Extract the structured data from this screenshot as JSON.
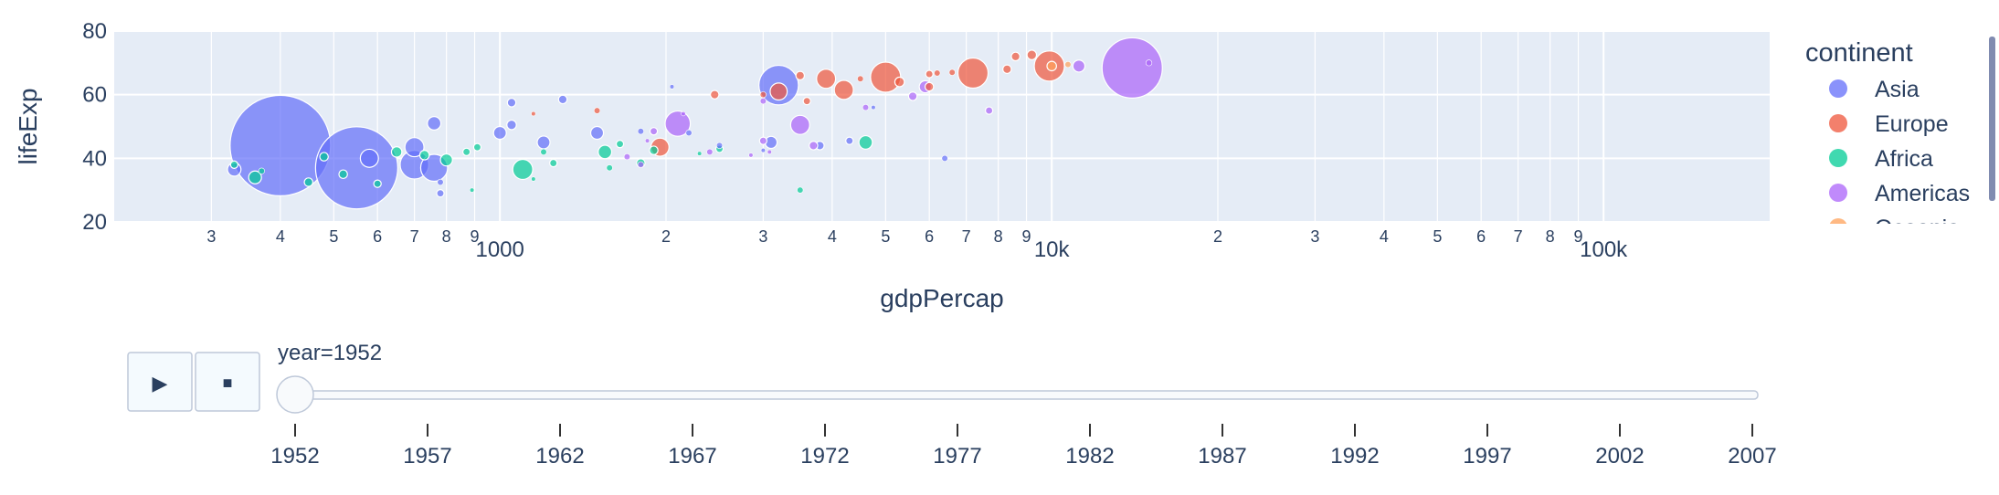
{
  "chart_data": {
    "type": "scatter",
    "subtype": "bubble",
    "xlabel": "gdpPercap",
    "ylabel": "lifeExp",
    "x_scale": "log",
    "xlim": [
      200,
      200000
    ],
    "ylim": [
      20,
      80
    ],
    "y_ticks": [
      "20",
      "40",
      "60",
      "80"
    ],
    "x_ticks": [
      {
        "value": 300,
        "label": "3"
      },
      {
        "value": 400,
        "label": "4"
      },
      {
        "value": 500,
        "label": "5"
      },
      {
        "value": 600,
        "label": "6"
      },
      {
        "value": 700,
        "label": "7"
      },
      {
        "value": 800,
        "label": "8"
      },
      {
        "value": 900,
        "label": "9"
      },
      {
        "value": 1000,
        "label": "1000",
        "major": true
      },
      {
        "value": 2000,
        "label": "2"
      },
      {
        "value": 3000,
        "label": "3"
      },
      {
        "value": 4000,
        "label": "4"
      },
      {
        "value": 5000,
        "label": "5"
      },
      {
        "value": 6000,
        "label": "6"
      },
      {
        "value": 7000,
        "label": "7"
      },
      {
        "value": 8000,
        "label": "8"
      },
      {
        "value": 9000,
        "label": "9"
      },
      {
        "value": 10000,
        "label": "10k",
        "major": true
      },
      {
        "value": 20000,
        "label": "2"
      },
      {
        "value": 30000,
        "label": "3"
      },
      {
        "value": 40000,
        "label": "4"
      },
      {
        "value": 50000,
        "label": "5"
      },
      {
        "value": 60000,
        "label": "6"
      },
      {
        "value": 70000,
        "label": "7"
      },
      {
        "value": 80000,
        "label": "8"
      },
      {
        "value": 90000,
        "label": "9"
      },
      {
        "value": 100000,
        "label": "100k",
        "major": true
      }
    ],
    "legend": {
      "title": "continent",
      "placement": "right",
      "entries": [
        {
          "name": "Asia",
          "color": "#636efa"
        },
        {
          "name": "Europe",
          "color": "#ef553b"
        },
        {
          "name": "Africa",
          "color": "#00cc96"
        },
        {
          "name": "Americas",
          "color": "#ab63fa"
        },
        {
          "name": "Oceania",
          "color": "#ffa15a"
        }
      ]
    },
    "series": [
      {
        "name": "Asia",
        "color": "#636efa",
        "points": [
          {
            "x": 400,
            "y": 44,
            "size": 556
          },
          {
            "x": 550,
            "y": 37,
            "size": 372
          },
          {
            "x": 3200,
            "y": 63,
            "size": 86
          },
          {
            "x": 700,
            "y": 38,
            "size": 45
          },
          {
            "x": 760,
            "y": 37,
            "size": 40
          },
          {
            "x": 700,
            "y": 43.5,
            "size": 20
          },
          {
            "x": 580,
            "y": 40,
            "size": 18
          },
          {
            "x": 330,
            "y": 36.5,
            "size": 10
          },
          {
            "x": 760,
            "y": 51,
            "size": 10
          },
          {
            "x": 1200,
            "y": 45,
            "size": 9
          },
          {
            "x": 1000,
            "y": 48,
            "size": 9
          },
          {
            "x": 1500,
            "y": 48,
            "size": 9
          },
          {
            "x": 3100,
            "y": 45,
            "size": 8
          },
          {
            "x": 1050,
            "y": 50.5,
            "size": 5
          },
          {
            "x": 1050,
            "y": 57.5,
            "size": 4
          },
          {
            "x": 1300,
            "y": 58.5,
            "size": 4
          },
          {
            "x": 3800,
            "y": 44,
            "size": 4
          },
          {
            "x": 4300,
            "y": 45.5,
            "size": 3
          },
          {
            "x": 6400,
            "y": 40,
            "size": 2
          },
          {
            "x": 780,
            "y": 29,
            "size": 3
          },
          {
            "x": 780,
            "y": 32.5,
            "size": 2
          },
          {
            "x": 2500,
            "y": 44,
            "size": 2
          },
          {
            "x": 1800,
            "y": 48.5,
            "size": 2
          },
          {
            "x": 2200,
            "y": 48,
            "size": 2
          },
          {
            "x": 3000,
            "y": 42.5,
            "size": 1
          },
          {
            "x": 2050,
            "y": 62.5,
            "size": 1
          },
          {
            "x": 4750,
            "y": 56,
            "size": 1
          }
        ]
      },
      {
        "name": "Europe",
        "color": "#ef553b",
        "points": [
          {
            "x": 7200,
            "y": 66.8,
            "size": 50
          },
          {
            "x": 5000,
            "y": 65.5,
            "size": 50
          },
          {
            "x": 9900,
            "y": 69,
            "size": 50
          },
          {
            "x": 3900,
            "y": 65,
            "size": 20
          },
          {
            "x": 4200,
            "y": 61.5,
            "size": 20
          },
          {
            "x": 3200,
            "y": 61,
            "size": 16
          },
          {
            "x": 1950,
            "y": 43.5,
            "size": 18
          },
          {
            "x": 6000,
            "y": 62.5,
            "size": 4
          },
          {
            "x": 5300,
            "y": 64,
            "size": 5
          },
          {
            "x": 8300,
            "y": 68,
            "size": 4
          },
          {
            "x": 8600,
            "y": 72,
            "size": 4
          },
          {
            "x": 9200,
            "y": 72.5,
            "size": 5
          },
          {
            "x": 3500,
            "y": 66,
            "size": 4
          },
          {
            "x": 2450,
            "y": 60,
            "size": 4
          },
          {
            "x": 3600,
            "y": 58,
            "size": 3
          },
          {
            "x": 4500,
            "y": 65,
            "size": 2
          },
          {
            "x": 6000,
            "y": 66.5,
            "size": 3
          },
          {
            "x": 6600,
            "y": 67,
            "size": 2
          },
          {
            "x": 3000,
            "y": 60,
            "size": 2
          },
          {
            "x": 1500,
            "y": 55,
            "size": 2
          },
          {
            "x": 1150,
            "y": 54,
            "size": 1
          },
          {
            "x": 6200,
            "y": 66.8,
            "size": 2
          }
        ]
      },
      {
        "name": "Africa",
        "color": "#00cc96",
        "points": [
          {
            "x": 1100,
            "y": 36.5,
            "size": 22
          },
          {
            "x": 4600,
            "y": 45,
            "size": 10
          },
          {
            "x": 1550,
            "y": 42,
            "size": 10
          },
          {
            "x": 360,
            "y": 34,
            "size": 9
          },
          {
            "x": 800,
            "y": 39.5,
            "size": 8
          },
          {
            "x": 650,
            "y": 42,
            "size": 6
          },
          {
            "x": 730,
            "y": 41,
            "size": 5
          },
          {
            "x": 1800,
            "y": 38.5,
            "size": 4
          },
          {
            "x": 1900,
            "y": 42.5,
            "size": 4
          },
          {
            "x": 450,
            "y": 32.5,
            "size": 4
          },
          {
            "x": 520,
            "y": 35,
            "size": 4
          },
          {
            "x": 480,
            "y": 40.5,
            "size": 4
          },
          {
            "x": 1650,
            "y": 44.5,
            "size": 3
          },
          {
            "x": 1250,
            "y": 38.5,
            "size": 3
          },
          {
            "x": 870,
            "y": 42,
            "size": 3
          },
          {
            "x": 2500,
            "y": 43,
            "size": 3
          },
          {
            "x": 910,
            "y": 43.5,
            "size": 3
          },
          {
            "x": 330,
            "y": 38,
            "size": 3
          },
          {
            "x": 600,
            "y": 32,
            "size": 3
          },
          {
            "x": 370,
            "y": 36,
            "size": 2
          },
          {
            "x": 1200,
            "y": 42,
            "size": 2
          },
          {
            "x": 3500,
            "y": 30,
            "size": 2
          },
          {
            "x": 1580,
            "y": 37,
            "size": 2
          },
          {
            "x": 1150,
            "y": 33.5,
            "size": 1
          },
          {
            "x": 890,
            "y": 30,
            "size": 1
          },
          {
            "x": 2300,
            "y": 41.5,
            "size": 1
          }
        ]
      },
      {
        "name": "Americas",
        "color": "#ab63fa",
        "points": [
          {
            "x": 13990,
            "y": 68.4,
            "size": 200
          },
          {
            "x": 2100,
            "y": 50.9,
            "size": 35
          },
          {
            "x": 3500,
            "y": 50.5,
            "size": 20
          },
          {
            "x": 11200,
            "y": 69,
            "size": 8
          },
          {
            "x": 5900,
            "y": 62.5,
            "size": 8
          },
          {
            "x": 5600,
            "y": 59.5,
            "size": 4
          },
          {
            "x": 7700,
            "y": 55,
            "size": 3
          },
          {
            "x": 3700,
            "y": 44,
            "size": 4
          },
          {
            "x": 3000,
            "y": 45.5,
            "size": 3
          },
          {
            "x": 1900,
            "y": 48.5,
            "size": 3
          },
          {
            "x": 2400,
            "y": 42,
            "size": 2
          },
          {
            "x": 1700,
            "y": 40.5,
            "size": 2
          },
          {
            "x": 1800,
            "y": 38,
            "size": 2
          },
          {
            "x": 2850,
            "y": 41,
            "size": 1
          },
          {
            "x": 3080,
            "y": 42,
            "size": 1
          },
          {
            "x": 1850,
            "y": 45.5,
            "size": 1
          },
          {
            "x": 3000,
            "y": 58,
            "size": 2
          },
          {
            "x": 4600,
            "y": 56,
            "size": 2
          },
          {
            "x": 2150,
            "y": 54,
            "size": 1
          },
          {
            "x": 15000,
            "y": 70,
            "size": 2
          }
        ]
      },
      {
        "name": "Oceania",
        "color": "#ffa15a",
        "points": [
          {
            "x": 10000,
            "y": 69,
            "size": 5
          },
          {
            "x": 10700,
            "y": 69.5,
            "size": 2
          }
        ]
      }
    ]
  },
  "controls": {
    "play_label": "▶",
    "stop_label": "■",
    "current_value_label": "year=1952",
    "slider_current": "1952",
    "slider_ticks": [
      "1952",
      "1957",
      "1962",
      "1967",
      "1972",
      "1977",
      "1982",
      "1987",
      "1992",
      "1997",
      "2002",
      "2007"
    ]
  }
}
